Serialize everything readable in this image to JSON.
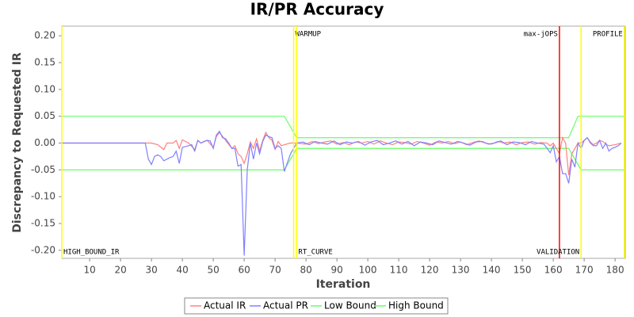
{
  "chart_data": {
    "type": "line",
    "title": "IR/PR Accuracy",
    "xlabel": "Iteration",
    "ylabel": "Discrepancy to Requested IR",
    "xlim": [
      1,
      183.3
    ],
    "ylim": [
      -0.215,
      0.218
    ],
    "xticks": [
      10,
      20,
      30,
      40,
      50,
      60,
      70,
      80,
      90,
      100,
      110,
      120,
      130,
      140,
      150,
      160,
      170,
      180
    ],
    "yticks": [
      {
        "value": -0.2,
        "label": "-0.20"
      },
      {
        "value": -0.15,
        "label": "-0.15"
      },
      {
        "value": -0.1,
        "label": "-0.10"
      },
      {
        "value": -0.05,
        "label": "-0.05"
      },
      {
        "value": 0,
        "label": "0.00"
      },
      {
        "value": 0.05,
        "label": "0.05"
      },
      {
        "value": 0.1,
        "label": "0.10"
      },
      {
        "value": 0.15,
        "label": "0.15"
      },
      {
        "value": 0.2,
        "label": "0.20"
      }
    ],
    "grid": false,
    "legend": "bottom",
    "markers": [
      {
        "value": 1,
        "label": "HIGH_BOUND_IR",
        "color": "#ffff00",
        "label_position": "bottom-right"
      },
      {
        "value": 76,
        "label": "WARMUP",
        "color": "#ffff00",
        "label_position": "top-right"
      },
      {
        "value": 77,
        "label": "RT_CURVE",
        "color": "#ffff00",
        "label_position": "bottom-right"
      },
      {
        "value": 162,
        "label": "max-jOPS",
        "color": "#ff0000",
        "label_position": "top-left"
      },
      {
        "value": 169,
        "label": "VALIDATION",
        "color": "#ffff00",
        "label_position": "bottom-left"
      },
      {
        "value": 183,
        "label": "PROFILE",
        "color": "#ffff00",
        "label_position": "top-left"
      }
    ],
    "series": [
      {
        "name": "Actual IR",
        "color": "#ff8080",
        "x": [
          1,
          28,
          30,
          32,
          34,
          35,
          37,
          38,
          39,
          40,
          42,
          44,
          45,
          46,
          48,
          50,
          51,
          52,
          54,
          56,
          57,
          58,
          59,
          60,
          61,
          62,
          63,
          64,
          65,
          66,
          67,
          68,
          69,
          70,
          71,
          72,
          73,
          75,
          77,
          80,
          82,
          84,
          86,
          88,
          90,
          92,
          94,
          96,
          98,
          100,
          102,
          104,
          106,
          108,
          110,
          112,
          114,
          116,
          118,
          120,
          122,
          124,
          126,
          128,
          130,
          132,
          134,
          136,
          138,
          140,
          142,
          144,
          146,
          148,
          150,
          152,
          154,
          156,
          158,
          159,
          160,
          161,
          162,
          163,
          164,
          165,
          166,
          167,
          168,
          169,
          170,
          171,
          172,
          173,
          174,
          175,
          176,
          177,
          178,
          180,
          182
        ],
        "values": [
          0,
          0,
          0,
          -0.003,
          -0.012,
          0,
          0,
          0.005,
          -0.01,
          0.006,
          0,
          -0.012,
          0.005,
          0,
          0.005,
          -0.008,
          0.012,
          0.02,
          0.005,
          -0.01,
          -0.005,
          -0.02,
          -0.025,
          -0.038,
          -0.02,
          0.002,
          -0.01,
          0.008,
          -0.015,
          0.005,
          0.02,
          0.01,
          0.005,
          -0.012,
          0.003,
          -0.005,
          -0.003,
          0,
          0,
          -0.002,
          0.003,
          -0.001,
          0.002,
          0.004,
          -0.002,
          0.001,
          -0.003,
          0.002,
          0,
          0.003,
          -0.002,
          0.004,
          0,
          -0.003,
          0.002,
          0.001,
          -0.002,
          0.003,
          0,
          -0.004,
          0.002,
          0,
          0.003,
          -0.001,
          0.002,
          -0.003,
          0.001,
          0.004,
          0,
          -0.002,
          0.003,
          0,
          0.002,
          -0.003,
          0.001,
          0.002,
          -0.002,
          0.001,
          0,
          -0.005,
          0,
          -0.01,
          -0.02,
          0.01,
          0,
          -0.06,
          -0.02,
          -0.01,
          0,
          0,
          0.005,
          0.01,
          0.002,
          -0.003,
          0,
          0.005,
          0.003,
          -0.002,
          -0.005,
          -0.003,
          0
        ]
      },
      {
        "name": "Actual PR",
        "color": "#8080ff",
        "x": [
          1,
          28,
          29,
          30,
          31,
          32,
          33,
          34,
          35,
          36,
          37,
          38,
          39,
          40,
          42,
          43,
          44,
          45,
          46,
          47,
          48,
          49,
          50,
          51,
          52,
          53,
          54,
          55,
          56,
          57,
          58,
          59,
          60,
          61,
          62,
          63,
          64,
          65,
          66,
          67,
          68,
          69,
          70,
          71,
          72,
          73,
          75,
          77,
          79,
          81,
          83,
          85,
          87,
          89,
          91,
          93,
          95,
          97,
          99,
          101,
          103,
          105,
          107,
          109,
          111,
          113,
          115,
          117,
          119,
          121,
          123,
          125,
          127,
          129,
          131,
          133,
          135,
          137,
          139,
          141,
          143,
          145,
          147,
          149,
          151,
          153,
          155,
          157,
          159,
          160,
          161,
          162,
          163,
          164,
          165,
          166,
          167,
          168,
          169,
          170,
          171,
          172,
          173,
          174,
          175,
          176,
          177,
          178,
          179,
          180,
          181,
          182
        ],
        "values": [
          0,
          0,
          -0.03,
          -0.04,
          -0.025,
          -0.022,
          -0.025,
          -0.033,
          -0.03,
          -0.027,
          -0.025,
          -0.015,
          -0.038,
          -0.008,
          -0.005,
          -0.003,
          -0.015,
          0.005,
          0,
          0.003,
          0.005,
          0.004,
          -0.01,
          0.015,
          0.022,
          0.01,
          0.008,
          0,
          -0.01,
          -0.01,
          -0.043,
          -0.04,
          -0.21,
          -0.05,
          0,
          -0.03,
          0,
          -0.02,
          0.003,
          0.015,
          0.012,
          0.01,
          -0.01,
          -0.005,
          -0.01,
          -0.053,
          -0.02,
          0,
          0.002,
          -0.003,
          0.003,
          0,
          -0.002,
          0.004,
          -0.003,
          0.002,
          0,
          0.003,
          -0.004,
          0.002,
          0.005,
          -0.003,
          0,
          0.004,
          -0.002,
          0.003,
          -0.005,
          0.002,
          0,
          -0.003,
          0.004,
          0.001,
          -0.002,
          0.003,
          0,
          -0.004,
          0.002,
          0.003,
          -0.002,
          0,
          0.004,
          -0.003,
          0.002,
          0.001,
          -0.003,
          0.003,
          0,
          -0.002,
          -0.018,
          -0.005,
          -0.035,
          -0.025,
          -0.057,
          -0.057,
          -0.075,
          -0.03,
          -0.045,
          0,
          -0.01,
          0.005,
          0.01,
          0,
          -0.005,
          -0.005,
          0.005,
          -0.01,
          0,
          -0.015,
          -0.01,
          -0.008,
          -0.005,
          0
        ]
      },
      {
        "name": "Low Bound",
        "color": "#66ff66",
        "x": [
          1,
          73,
          77,
          165,
          169,
          183.3
        ],
        "values": [
          -0.05,
          -0.05,
          -0.01,
          -0.01,
          -0.05,
          -0.05
        ]
      },
      {
        "name": "High Bound",
        "color": "#66ff66",
        "x": [
          1,
          73,
          77,
          165,
          168,
          183.3
        ],
        "values": [
          0.05,
          0.05,
          0.01,
          0.01,
          0.05,
          0.05
        ]
      }
    ]
  }
}
